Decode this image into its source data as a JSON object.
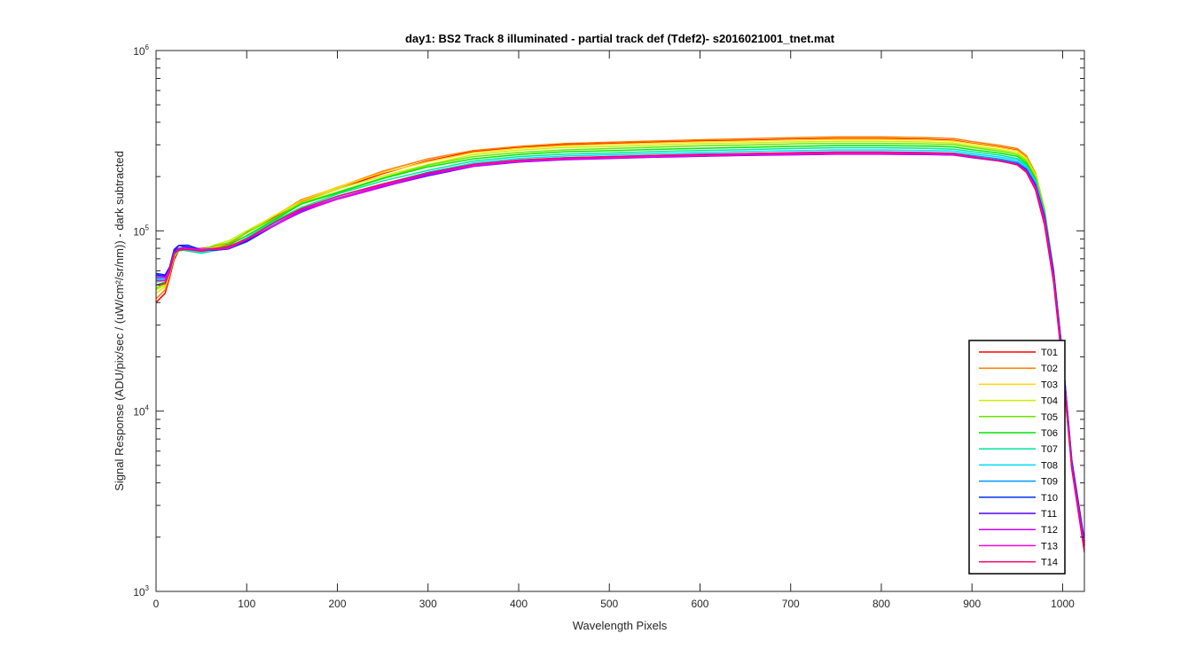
{
  "chart_data": {
    "type": "line",
    "title": "day1: BS2  Track 8 illuminated - partial track def  (Tdef2)- s2016021001_tnet.mat",
    "xlabel": "Wavelength Pixels",
    "ylabel": "Signal Response (ADU/pix/sec / (uW/cm²/sr/nm)) - dark subtracted",
    "xlim": [
      0,
      1024
    ],
    "ylim": [
      1000,
      1000000
    ],
    "yscale": "log",
    "x_ticks": [
      "0",
      "100",
      "200",
      "300",
      "400",
      "500",
      "600",
      "700",
      "800",
      "900",
      "1000"
    ],
    "y_ticks": [
      {
        "value": 1000,
        "base": "10",
        "exp": "3"
      },
      {
        "value": 10000,
        "base": "10",
        "exp": "4"
      },
      {
        "value": 100000,
        "base": "10",
        "exp": "5"
      },
      {
        "value": 1000000,
        "base": "10",
        "exp": "6"
      }
    ],
    "grid": false,
    "legend_position": "bottom-right",
    "x": [
      0,
      10,
      15,
      20,
      25,
      35,
      50,
      65,
      80,
      100,
      130,
      160,
      200,
      250,
      300,
      350,
      400,
      450,
      500,
      550,
      600,
      650,
      700,
      750,
      800,
      850,
      880,
      900,
      930,
      950,
      960,
      970,
      980,
      990,
      1000,
      1010,
      1024
    ],
    "series": [
      {
        "name": "T01",
        "color": "#ff0000",
        "values": [
          40000,
          45000,
          55000,
          70000,
          78000,
          80000,
          79000,
          81000,
          84000,
          97000,
          120000,
          145000,
          172000,
          210000,
          245000,
          275000,
          290000,
          300000,
          305000,
          310000,
          315000,
          318000,
          322000,
          325000,
          325000,
          322000,
          318000,
          306000,
          292000,
          280000,
          255000,
          205000,
          130000,
          60000,
          20000,
          5200,
          1800
        ]
      },
      {
        "name": "T02",
        "color": "#ff7f00",
        "values": [
          42000,
          47000,
          57000,
          71000,
          78000,
          80000,
          79000,
          81000,
          85000,
          98000,
          121000,
          147000,
          175000,
          213000,
          248000,
          279000,
          294000,
          305000,
          310000,
          315000,
          320000,
          324000,
          328000,
          332000,
          332000,
          329000,
          325000,
          313000,
          298000,
          286000,
          261000,
          210000,
          133000,
          61000,
          20000,
          5200,
          1800
        ]
      },
      {
        "name": "T03",
        "color": "#ffd700",
        "values": [
          45000,
          49000,
          58000,
          72000,
          78000,
          80000,
          79000,
          82000,
          86000,
          98000,
          120000,
          146000,
          173000,
          208000,
          242000,
          272000,
          287000,
          297000,
          302000,
          307000,
          312000,
          315000,
          319000,
          322000,
          322000,
          319000,
          315000,
          304000,
          290000,
          278000,
          254000,
          206000,
          132000,
          61000,
          20000,
          5300,
          1850
        ]
      },
      {
        "name": "T04",
        "color": "#c8f000",
        "values": [
          47000,
          50000,
          58000,
          73000,
          78000,
          80000,
          78000,
          83000,
          87000,
          99000,
          120000,
          145000,
          170000,
          203000,
          236000,
          265000,
          280000,
          290000,
          294000,
          299000,
          304000,
          307000,
          311000,
          314000,
          314000,
          311000,
          307000,
          296000,
          283000,
          271000,
          248000,
          202000,
          131000,
          61000,
          20000,
          5300,
          1850
        ]
      },
      {
        "name": "T05",
        "color": "#66e600",
        "values": [
          48000,
          51000,
          59000,
          73000,
          78000,
          79000,
          78000,
          82000,
          86000,
          97000,
          118000,
          142000,
          166000,
          198000,
          230000,
          258000,
          272000,
          281000,
          286000,
          291000,
          296000,
          299000,
          303000,
          306000,
          306000,
          303000,
          300000,
          290000,
          277000,
          265000,
          243000,
          198000,
          129000,
          60000,
          20000,
          5300,
          1850
        ]
      },
      {
        "name": "T06",
        "color": "#00e600",
        "values": [
          50000,
          52000,
          59000,
          74000,
          78000,
          78000,
          77000,
          80000,
          84000,
          95000,
          115000,
          139000,
          162000,
          193000,
          224000,
          251000,
          265000,
          274000,
          278000,
          283000,
          287000,
          290000,
          294000,
          297000,
          297000,
          295000,
          292000,
          282000,
          270000,
          259000,
          237000,
          194000,
          127000,
          60000,
          20000,
          5300,
          1850
        ]
      },
      {
        "name": "T07",
        "color": "#00e696",
        "values": [
          52000,
          53000,
          60000,
          74000,
          78000,
          78000,
          76000,
          78000,
          80000,
          92000,
          112000,
          135000,
          158000,
          188000,
          218000,
          244000,
          258000,
          266000,
          270000,
          275000,
          279000,
          282000,
          286000,
          289000,
          289000,
          287000,
          284000,
          275000,
          263000,
          252000,
          232000,
          190000,
          125000,
          60000,
          20000,
          5400,
          1900
        ]
      },
      {
        "name": "T08",
        "color": "#00dcff",
        "values": [
          54000,
          54000,
          61000,
          75000,
          79000,
          79000,
          76000,
          77000,
          79000,
          90000,
          109000,
          132000,
          155000,
          184000,
          213000,
          238000,
          252000,
          260000,
          264000,
          268000,
          272000,
          275000,
          278000,
          281000,
          281000,
          279000,
          277000,
          268000,
          257000,
          247000,
          227000,
          187000,
          124000,
          60000,
          20000,
          5400,
          1900
        ]
      },
      {
        "name": "T09",
        "color": "#0096ff",
        "values": [
          56000,
          56000,
          62000,
          76000,
          81000,
          81000,
          78000,
          78000,
          80000,
          89000,
          108000,
          130000,
          152000,
          180000,
          209000,
          233000,
          246000,
          254000,
          258000,
          262000,
          266000,
          268000,
          271000,
          274000,
          274000,
          272000,
          270000,
          262000,
          251000,
          241000,
          222000,
          183000,
          122000,
          60000,
          20000,
          5400,
          1900
        ]
      },
      {
        "name": "T10",
        "color": "#0032f0",
        "values": [
          58000,
          57000,
          63000,
          78000,
          83000,
          83000,
          79000,
          79000,
          80000,
          88000,
          106000,
          128000,
          150000,
          177000,
          205000,
          229000,
          242000,
          249000,
          253000,
          257000,
          260000,
          263000,
          266000,
          268000,
          268000,
          267000,
          265000,
          257000,
          246000,
          236000,
          218000,
          180000,
          120000,
          59000,
          20000,
          5300,
          1900
        ]
      },
      {
        "name": "T11",
        "color": "#5000ff",
        "values": [
          57000,
          56000,
          62000,
          77000,
          82000,
          82000,
          79000,
          79000,
          80000,
          88000,
          106000,
          128000,
          150000,
          176000,
          204000,
          228000,
          241000,
          248000,
          252000,
          256000,
          259000,
          262000,
          264000,
          266000,
          266000,
          265000,
          263000,
          255000,
          244000,
          234000,
          216000,
          178000,
          118000,
          58000,
          19500,
          5200,
          1850
        ]
      },
      {
        "name": "T12",
        "color": "#c800ff",
        "values": [
          55000,
          55000,
          61000,
          76000,
          80000,
          80000,
          78000,
          79000,
          80000,
          89000,
          107000,
          129000,
          151000,
          177000,
          205000,
          229000,
          242000,
          249000,
          253000,
          257000,
          260000,
          263000,
          265000,
          267000,
          267000,
          266000,
          264000,
          256000,
          245000,
          234000,
          215000,
          176000,
          116000,
          56000,
          19000,
          5100,
          1800
        ]
      },
      {
        "name": "T13",
        "color": "#ff00dc",
        "values": [
          53000,
          53000,
          60000,
          75000,
          79000,
          79000,
          78000,
          79000,
          81000,
          90000,
          108000,
          130000,
          152000,
          178000,
          206000,
          231000,
          244000,
          251000,
          255000,
          259000,
          262000,
          265000,
          267000,
          269000,
          269000,
          268000,
          266000,
          257000,
          245000,
          233000,
          213000,
          172000,
          112000,
          54000,
          18000,
          4900,
          1700
        ]
      },
      {
        "name": "T14",
        "color": "#ff0064",
        "values": [
          50000,
          51000,
          59000,
          74000,
          78000,
          79000,
          78000,
          80000,
          82000,
          91000,
          110000,
          132000,
          154000,
          180000,
          209000,
          234000,
          247000,
          254000,
          258000,
          262000,
          265000,
          268000,
          271000,
          273000,
          273000,
          271000,
          268000,
          258000,
          245000,
          232000,
          211000,
          169000,
          108000,
          52000,
          17500,
          4800,
          1650
        ]
      }
    ]
  }
}
